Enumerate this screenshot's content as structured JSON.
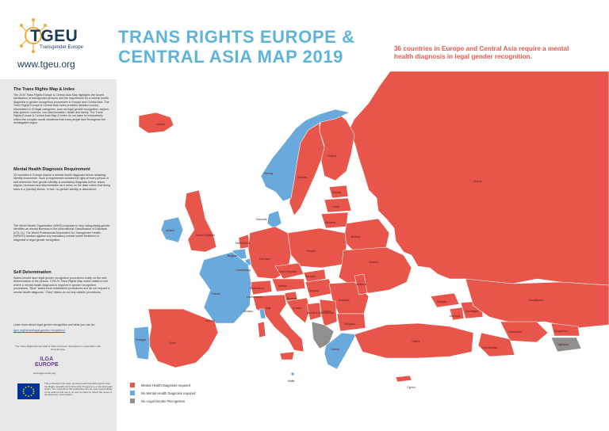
{
  "org": {
    "logo_text": "TGEU",
    "logo_subtitle": "Transgender Europe",
    "url": "www.tgeu.org"
  },
  "title": {
    "line1": "TRANS RIGHTS EUROPE &",
    "line2": "CENTRAL ASIA MAP 2019"
  },
  "tagline": "36 countries in Europe and Central Asia require a mental health diagnosis in legal gender recognition.",
  "sidebar": {
    "s1_heading": "The Trans Rights Map & Index",
    "s1_text": "The 2019 Trans Rights Europe & Central Asia Map highlights the forced sterilisation of transgender persons and the requirement for a mental health diagnosis in gender recognition procedures in Europe and Central Asia. The Trans Rights Europe & Central Asia Index provides detailed country information in 20 legal categories, such as legal gender recognition, asylum, bias speech/ violence, non-discrimination, health and family. The Trans Rights Europe & Central Asia Map & Index do not claim to exhaustively reflect the complex social situations that trans people face throughout the investigated region.",
    "s2_heading": "Mental Health Diagnosis Requirement",
    "s2_text": "33 countries in Europe require a mental health diagnosis before adapting identity documents. Such a requirement violates the right of every person to self-determine their gender identity. A mandatory diagnosis further drives stigma, exclusion and discrimination as it relies on the false notion that being trans is a (mental) illness. In fact, no gender identity is disordered.",
    "s3_text": "The World Health Organization (WHO) proposes to stop categorising gender identities as mental illnesses in the International Classification of Diseases (ICD-11). The World Professional Association for Transgender Health (WPATH) advises against any mandatory mental health treatment or diagnosis in legal gender recognition.",
    "s4_heading": "Self Determination",
    "s4_text": "States should have legal gender recognition procedures solely on the self-determination of the person. TGEU's Trans Rights Map marks states in red where a mental health diagnosis is required in gender recognition procedures. \"Blue\" states have established procedures and do not request a mental health diagnosis. \"Grey\" states do not any reliable procedures.",
    "s5_text": "Learn more about legal gender recognition and what you can do:",
    "s5_link": "tgeu.org/issues/legal-gender-recognition/",
    "footer_note": "The Trans Rights Europe Map & Index has been developed in cooperation with ILGA-Europe",
    "partner_line1": "ILGA",
    "partner_line2": "EUROPE",
    "partner_url": "www.ilga-europe.org",
    "eu_text": "This publication has been produced with financial support from the Rights, Equality and Citizenship Programme of the European Union. The contents of this publication are the sole responsibility of the authors and can in no way be taken to reflect the views of the European Commission."
  },
  "legend": {
    "items": [
      {
        "label": "Mental Health Diagnosis required",
        "color": "#e8554a"
      },
      {
        "label": "No Mental Health Diagnosis required",
        "color": "#6aa9dc"
      },
      {
        "label": "No Legal Gender Recognition",
        "color": "#8f8f8f"
      }
    ]
  },
  "colors": {
    "required": "#e8554a",
    "not_required": "#6aa9dc",
    "no_lgr": "#8f8f8f",
    "title": "#5fb3d9",
    "tagline": "#e35a4c"
  },
  "countries": {
    "iceland": "Iceland",
    "norway": "Norway",
    "sweden": "Sweden",
    "finland": "Finland",
    "estonia": "Estonia",
    "latvia": "Latvia",
    "lithuania": "Lithuania",
    "denmark": "Denmark",
    "ireland": "Ireland",
    "uk": "United Kingdom",
    "netherlands": "Netherlands",
    "belgium": "Belgium",
    "luxembourg": "Luxembourg",
    "germany": "Germany",
    "poland": "Poland",
    "belarus": "Belarus",
    "ukraine": "Ukraine",
    "russia": "Russia",
    "czech": "Czech Republic",
    "slovakia": "Slovakia",
    "austria": "Austria",
    "switzerland": "Switzerland",
    "liechtenstein": "Liechtenstein",
    "hungary": "Hungary",
    "slovenia": "Slovenia",
    "croatia": "Croatia",
    "bosnia": "Bosnia & Herzegovina",
    "serbia": "Serbia",
    "romania": "Romania",
    "moldova": "Moldova",
    "bulgaria": "Bulgaria",
    "france": "France",
    "spain": "Spain",
    "portugal": "Portugal",
    "andorra": "Andorra",
    "monaco": "Monaco",
    "italy": "Italy",
    "malta": "Malta",
    "greece": "Greece",
    "turkey": "Turkey",
    "cyprus": "Cyprus",
    "georgia": "Georgia",
    "armenia": "Armenia",
    "azerbaijan": "Azerbaijan",
    "kazakhstan": "Kazakhstan",
    "uzbekistan": "Uzbekistan",
    "kyrgyzstan": "Kyrgyzstan",
    "tajikistan": "Tajikistan",
    "turkmenistan": "Turkmenistan"
  }
}
